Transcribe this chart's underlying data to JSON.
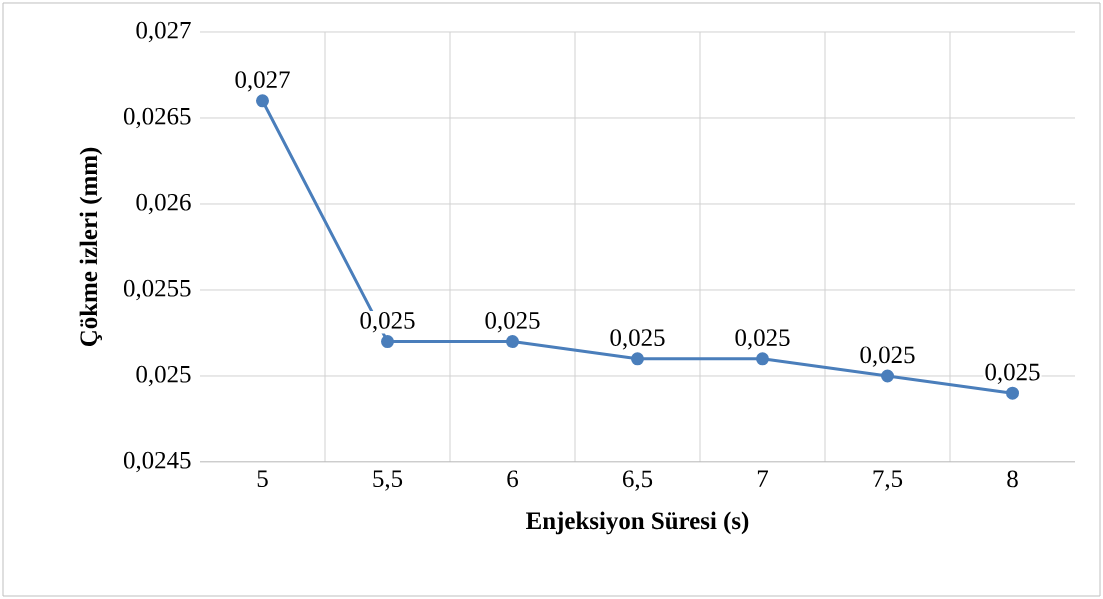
{
  "chart_data": {
    "type": "line",
    "xlabel": "Enjeksiyon Süresi (s)",
    "ylabel": "Çökme izleri (mm)",
    "categories": [
      "5",
      "5,5",
      "6",
      "6,5",
      "7",
      "7,5",
      "8"
    ],
    "series": [
      {
        "color": "#4a7ebb",
        "values": [
          0.0266,
          0.0252,
          0.0252,
          0.0251,
          0.0251,
          0.025,
          0.0249
        ],
        "value_labels": [
          "0,027",
          "0,025",
          "0,025",
          "0,025",
          "0,025",
          "0,025",
          "0,025"
        ]
      }
    ],
    "ylim": [
      0.0245,
      0.027
    ],
    "yticks": [
      {
        "value": 0.0245,
        "label": "0,0245"
      },
      {
        "value": 0.025,
        "label": "0,025"
      },
      {
        "value": 0.0255,
        "label": "0,0255"
      },
      {
        "value": 0.026,
        "label": "0,026"
      },
      {
        "value": 0.0265,
        "label": "0,0265"
      },
      {
        "value": 0.027,
        "label": "0,027"
      }
    ],
    "grid": true,
    "marker": "circle",
    "line_style": "solid"
  }
}
